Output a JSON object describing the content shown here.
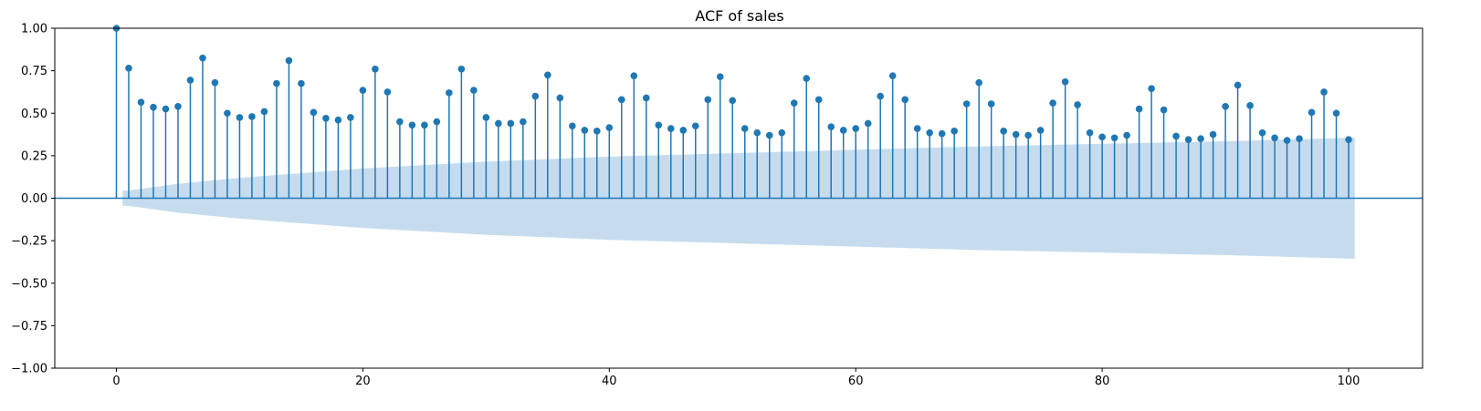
{
  "chart_data": {
    "type": "stem",
    "title": "ACF of sales",
    "xlabel": "",
    "ylabel": "",
    "xlim": [
      -5,
      106
    ],
    "ylim": [
      -1.0,
      1.0
    ],
    "xticks": [
      0,
      20,
      40,
      60,
      80,
      100
    ],
    "yticks": [
      -1.0,
      -0.75,
      -0.5,
      -0.25,
      0.0,
      0.25,
      0.5,
      0.75,
      1.0
    ],
    "xtick_labels": [
      "0",
      "20",
      "40",
      "60",
      "80",
      "100"
    ],
    "ytick_labels": [
      "−1.00",
      "−0.75",
      "−0.50",
      "−0.25",
      "0.00",
      "0.25",
      "0.50",
      "0.75",
      "1.00"
    ],
    "lags": [
      0,
      1,
      2,
      3,
      4,
      5,
      6,
      7,
      8,
      9,
      10,
      11,
      12,
      13,
      14,
      15,
      16,
      17,
      18,
      19,
      20,
      21,
      22,
      23,
      24,
      25,
      26,
      27,
      28,
      29,
      30,
      31,
      32,
      33,
      34,
      35,
      36,
      37,
      38,
      39,
      40,
      41,
      42,
      43,
      44,
      45,
      46,
      47,
      48,
      49,
      50,
      51,
      52,
      53,
      54,
      55,
      56,
      57,
      58,
      59,
      60,
      61,
      62,
      63,
      64,
      65,
      66,
      67,
      68,
      69,
      70,
      71,
      72,
      73,
      74,
      75,
      76,
      77,
      78,
      79,
      80,
      81,
      82,
      83,
      84,
      85,
      86,
      87,
      88,
      89,
      90,
      91,
      92,
      93,
      94,
      95,
      96,
      97,
      98,
      99,
      100
    ],
    "acf": [
      1.0,
      0.765,
      0.565,
      0.535,
      0.525,
      0.54,
      0.695,
      0.825,
      0.68,
      0.5,
      0.475,
      0.48,
      0.51,
      0.675,
      0.81,
      0.675,
      0.505,
      0.47,
      0.46,
      0.475,
      0.635,
      0.76,
      0.625,
      0.45,
      0.43,
      0.43,
      0.45,
      0.62,
      0.76,
      0.635,
      0.475,
      0.44,
      0.44,
      0.45,
      0.6,
      0.725,
      0.59,
      0.425,
      0.4,
      0.395,
      0.415,
      0.58,
      0.72,
      0.59,
      0.43,
      0.41,
      0.4,
      0.425,
      0.58,
      0.715,
      0.575,
      0.41,
      0.385,
      0.37,
      0.385,
      0.56,
      0.705,
      0.58,
      0.42,
      0.4,
      0.41,
      0.44,
      0.6,
      0.72,
      0.58,
      0.41,
      0.385,
      0.38,
      0.395,
      0.555,
      0.68,
      0.555,
      0.395,
      0.375,
      0.37,
      0.4,
      0.56,
      0.685,
      0.55,
      0.385,
      0.36,
      0.355,
      0.37,
      0.525,
      0.645,
      0.52,
      0.365,
      0.345,
      0.35,
      0.375,
      0.54,
      0.665,
      0.545,
      0.385,
      0.355,
      0.34,
      0.35,
      0.505,
      0.625,
      0.5,
      0.345
    ],
    "confint_lags": [
      1,
      5,
      10,
      20,
      30,
      40,
      50,
      60,
      70,
      80,
      90,
      100
    ],
    "confint_upper": [
      0.045,
      0.085,
      0.12,
      0.175,
      0.215,
      0.245,
      0.265,
      0.285,
      0.305,
      0.32,
      0.335,
      0.355
    ],
    "grid": false,
    "colors": {
      "stem": "#1f77b4",
      "confint_fill": "#c6dcee",
      "axes": "#000000"
    }
  }
}
